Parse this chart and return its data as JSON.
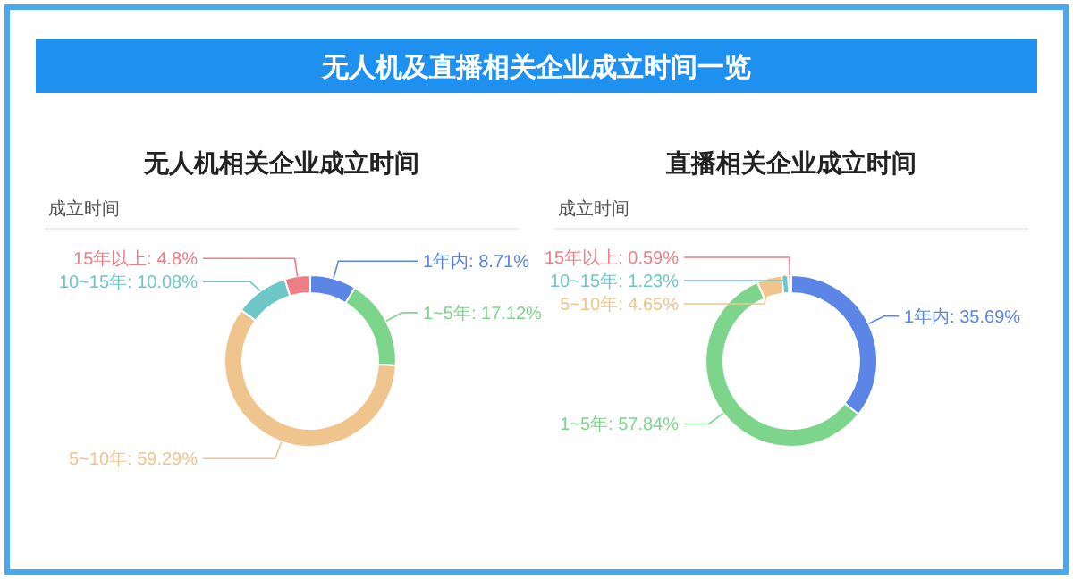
{
  "chart_data": [
    {
      "type": "donut",
      "title": "无人机相关企业成立时间",
      "subtitle": "成立时间",
      "annotations": [
        "无人机及直播相关企业成立时间一览"
      ],
      "categories": [
        "1年内",
        "1~5年",
        "5~10年",
        "10~15年",
        "15年以上"
      ],
      "values": [
        8.71,
        17.12,
        59.29,
        10.08,
        4.8
      ],
      "value_labels": [
        "8.71%",
        "17.12%",
        "59.29%",
        "10.08%",
        "4.8%"
      ],
      "colors": [
        "#5b86e5",
        "#7dd58c",
        "#f0c48d",
        "#6cc7c6",
        "#ee7d86"
      ]
    },
    {
      "type": "donut",
      "title": "直播相关企业成立时间",
      "subtitle": "成立时间",
      "categories": [
        "1年内",
        "1~5年",
        "5~10年",
        "10~15年",
        "15年以上"
      ],
      "values": [
        35.69,
        57.84,
        4.65,
        1.23,
        0.59
      ],
      "value_labels": [
        "35.69%",
        "57.84%",
        "4.65%",
        "1.23%",
        "0.59%"
      ],
      "colors": [
        "#5b86e5",
        "#7dd58c",
        "#f0c48d",
        "#6cc7c6",
        "#ee7d86"
      ]
    }
  ]
}
